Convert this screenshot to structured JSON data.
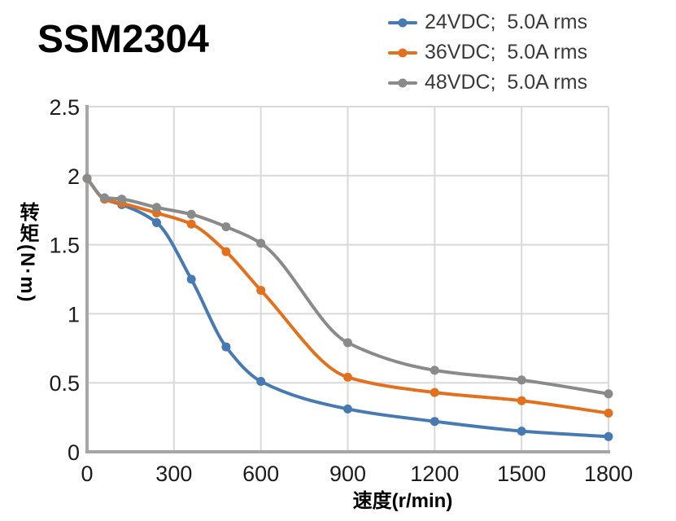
{
  "title": "SSM2304",
  "legend": {
    "position": "top-right",
    "items": [
      {
        "label": "24VDC;  5.0A rms",
        "color": "#4779b3",
        "key": "24vdc"
      },
      {
        "label": "36VDC;  5.0A rms",
        "color": "#e2701d",
        "key": "36vdc"
      },
      {
        "label": "48VDC;  5.0A rms",
        "color": "#8a8a8a",
        "key": "48vdc"
      }
    ]
  },
  "chart_data": {
    "type": "line",
    "title": "SSM2304",
    "xlabel": "速度(r/min)",
    "ylabel": "转矩(N·m)",
    "xlim": [
      0,
      1800
    ],
    "ylim": [
      0,
      2.5
    ],
    "x_ticks": [
      0,
      300,
      600,
      900,
      1200,
      1500,
      1800
    ],
    "y_ticks": [
      0,
      0.5,
      1,
      1.5,
      2,
      2.5
    ],
    "grid": true,
    "legend_position": "top-right",
    "marker": "circle",
    "x": [
      0,
      60,
      120,
      240,
      360,
      480,
      600,
      900,
      1200,
      1500,
      1800
    ],
    "series": [
      {
        "name": "24VDC;  5.0A rms",
        "key": "24vdc",
        "color": "#4779b3",
        "values": [
          1.98,
          1.83,
          1.79,
          1.66,
          1.25,
          0.76,
          0.51,
          0.31,
          0.22,
          0.15,
          0.11
        ]
      },
      {
        "name": "36VDC;  5.0A rms",
        "key": "36vdc",
        "color": "#e2701d",
        "values": [
          1.98,
          1.83,
          1.8,
          1.73,
          1.65,
          1.45,
          1.17,
          0.54,
          0.43,
          0.37,
          0.28
        ]
      },
      {
        "name": "48VDC;  5.0A rms",
        "key": "48vdc",
        "color": "#8a8a8a",
        "values": [
          1.98,
          1.84,
          1.83,
          1.77,
          1.72,
          1.63,
          1.51,
          0.79,
          0.59,
          0.52,
          0.42
        ]
      }
    ]
  }
}
